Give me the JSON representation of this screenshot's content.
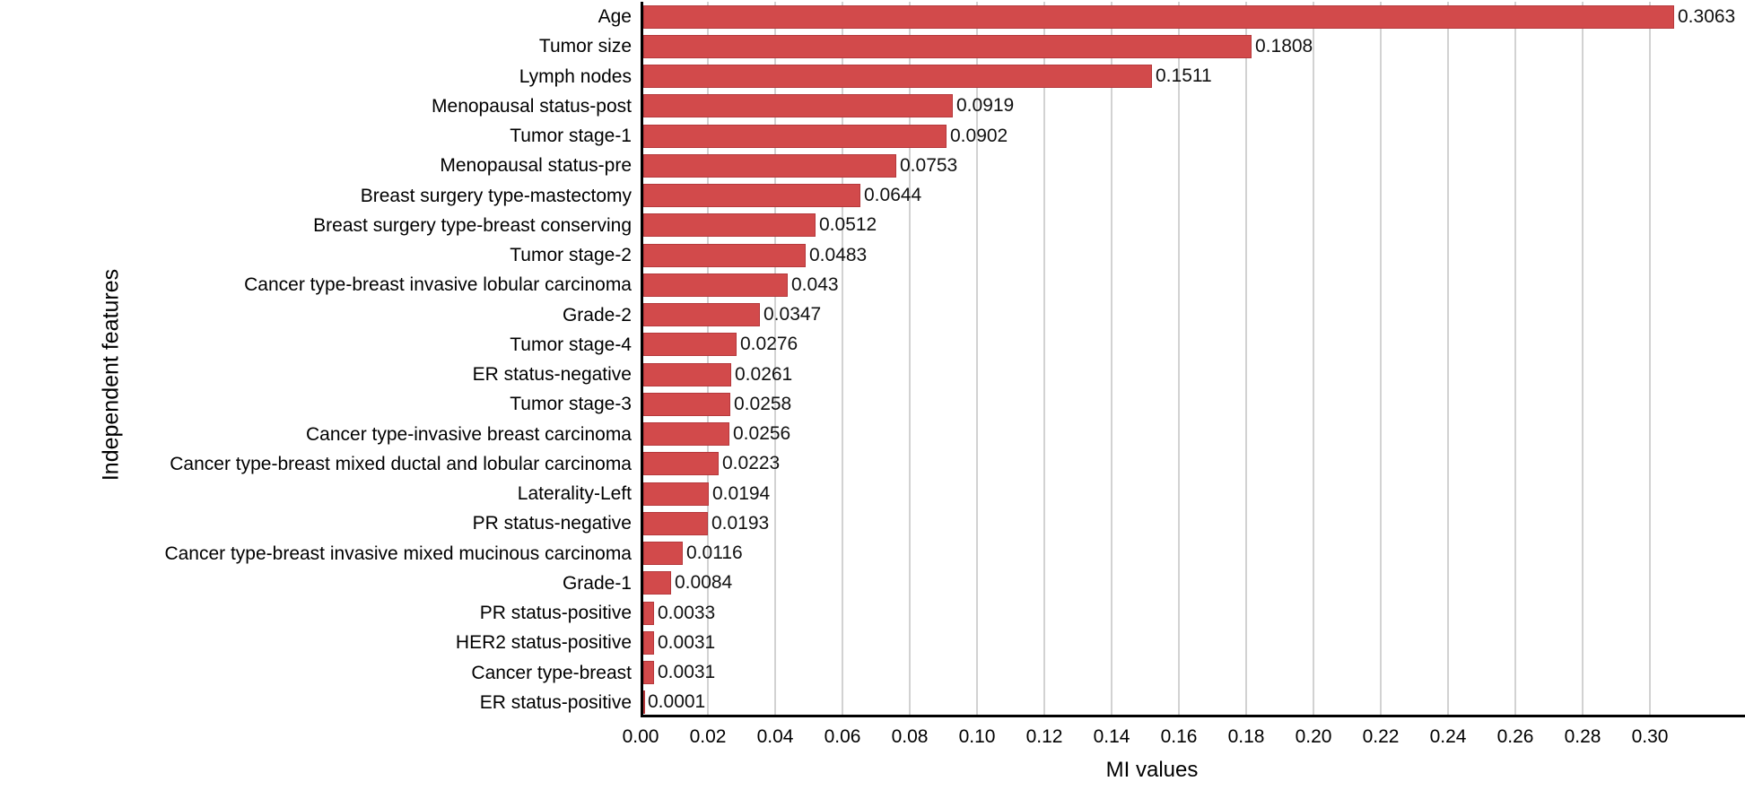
{
  "chart_data": {
    "type": "bar",
    "orientation": "horizontal",
    "title": "",
    "xlabel": "MI values",
    "ylabel": "Independent features",
    "categories": [
      "Age",
      "Tumor size",
      "Lymph nodes",
      "Menopausal status-post",
      "Tumor stage-1",
      "Menopausal status-pre",
      "Breast surgery type-mastectomy",
      "Breast surgery type-breast conserving",
      "Tumor stage-2",
      "Cancer type-breast invasive lobular carcinoma",
      "Grade-2",
      "Tumor stage-4",
      "ER status-negative",
      "Tumor stage-3",
      "Cancer type-invasive breast carcinoma",
      "Cancer type-breast mixed ductal and lobular carcinoma",
      "Laterality-Left",
      "PR status-negative",
      "Cancer type-breast invasive mixed mucinous carcinoma",
      "Grade-1",
      "PR status-positive",
      "HER2 status-positive",
      "Cancer type-breast",
      "ER status-positive"
    ],
    "values": [
      0.3063,
      0.1808,
      0.1511,
      0.0919,
      0.0902,
      0.0753,
      0.0644,
      0.0512,
      0.0483,
      0.043,
      0.0347,
      0.0276,
      0.0261,
      0.0258,
      0.0256,
      0.0223,
      0.0194,
      0.0193,
      0.0116,
      0.0084,
      0.0033,
      0.0031,
      0.0031,
      0.0001
    ],
    "value_labels": [
      "0.3063",
      "0.1808",
      "0.1511",
      "0.0919",
      "0.0902",
      "0.0753",
      "0.0644",
      "0.0512",
      "0.0483",
      "0.043",
      "0.0347",
      "0.0276",
      "0.0261",
      "0.0258",
      "0.0256",
      "0.0223",
      "0.0194",
      "0.0193",
      "0.0116",
      "0.0084",
      "0.0033",
      "0.0031",
      "0.0031",
      "0.0001"
    ],
    "xticks": [
      "0.00",
      "0.02",
      "0.04",
      "0.06",
      "0.08",
      "0.10",
      "0.12",
      "0.14",
      "0.16",
      "0.18",
      "0.20",
      "0.22",
      "0.24",
      "0.26",
      "0.28",
      "0.30"
    ],
    "xtick_step": 0.02,
    "xlim": [
      0.0,
      0.328
    ],
    "grid": "vertical",
    "legend": "none",
    "colors": {
      "bar_fill": "#d24a4b",
      "bar_edge": "#b5383b",
      "grid_line": "#d2d2d2",
      "axis_spine": "#000000",
      "text": "#000000"
    }
  }
}
